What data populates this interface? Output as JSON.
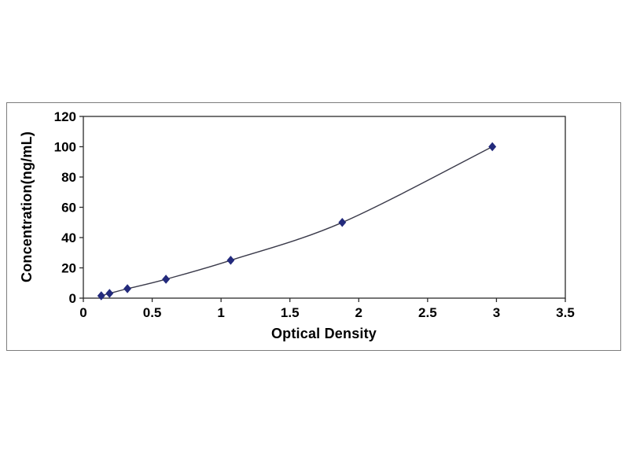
{
  "chart_data": {
    "type": "line",
    "title": "",
    "xlabel": "Optical Density",
    "ylabel": "Concentration(ng/mL)",
    "x": [
      0.13,
      0.19,
      0.32,
      0.6,
      1.07,
      1.88,
      2.97
    ],
    "y": [
      1.56,
      3.12,
      6.25,
      12.5,
      25,
      50,
      100
    ],
    "xlim": [
      0,
      3.5
    ],
    "ylim": [
      0,
      120
    ],
    "xticks": [
      0,
      0.5,
      1,
      1.5,
      2,
      2.5,
      3,
      3.5
    ],
    "yticks": [
      0,
      20,
      40,
      60,
      80,
      100,
      120
    ],
    "grid": false,
    "legend": "none",
    "marker": "diamond",
    "line_color": "#3a3a4a",
    "marker_color": "#232a7c",
    "axis_color": "#2b2b2b",
    "text_color": "#000000"
  }
}
